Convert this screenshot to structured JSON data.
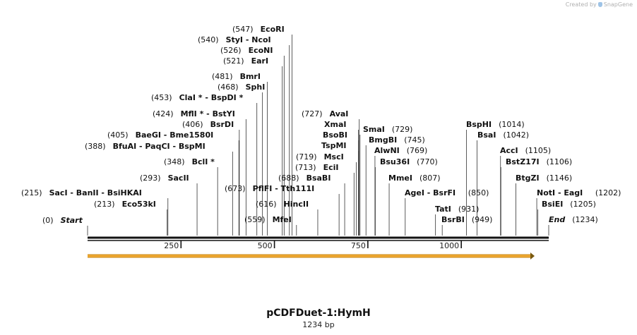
{
  "credit": {
    "text": "Created by",
    "brand": "SnapGene",
    "icon": "snapgene-logo-icon"
  },
  "map": {
    "name": "pCDFDuet-1:HymH",
    "length_label": "1234 bp",
    "length": 1234,
    "ruler_ticks": [
      {
        "pos": 250,
        "label": "250"
      },
      {
        "pos": 500,
        "label": "500"
      },
      {
        "pos": 750,
        "label": "750"
      },
      {
        "pos": 1000,
        "label": "1000"
      }
    ],
    "feature": {
      "start": 0,
      "end": 1234,
      "strand": "forward",
      "color": "#f0a830"
    },
    "colors": {
      "line": "#111111",
      "sites": "#333333"
    },
    "sites": [
      {
        "pos": 0,
        "num": "(0)",
        "names": [
          "Start"
        ],
        "italic": true
      },
      {
        "pos": 213,
        "num": "(213)",
        "names": [
          "Eco53kI"
        ]
      },
      {
        "pos": 215,
        "num": "(215)",
        "names": [
          "SacI",
          "BanII",
          "BsiHKAI"
        ]
      },
      {
        "pos": 293,
        "num": "(293)",
        "names": [
          "SacII"
        ]
      },
      {
        "pos": 348,
        "num": "(348)",
        "names": [
          "BclI *"
        ]
      },
      {
        "pos": 388,
        "num": "(388)",
        "names": [
          "BfuAI",
          "PaqCI",
          "BspMI"
        ]
      },
      {
        "pos": 405,
        "num": "(405)",
        "names": [
          "BaeGI",
          "Bme1580I"
        ]
      },
      {
        "pos": 406,
        "num": "(406)",
        "names": [
          "BsrDI"
        ]
      },
      {
        "pos": 424,
        "num": "(424)",
        "names": [
          "MflI *",
          "BstYI"
        ]
      },
      {
        "pos": 453,
        "num": "(453)",
        "names": [
          "ClaI *",
          "BspDI *"
        ]
      },
      {
        "pos": 468,
        "num": "(468)",
        "names": [
          "SphI"
        ]
      },
      {
        "pos": 481,
        "num": "(481)",
        "names": [
          "BmrI"
        ]
      },
      {
        "pos": 521,
        "num": "(521)",
        "names": [
          "EarI"
        ]
      },
      {
        "pos": 526,
        "num": "(526)",
        "names": [
          "EcoNI"
        ]
      },
      {
        "pos": 540,
        "num": "(540)",
        "names": [
          "StyI",
          "NcoI"
        ]
      },
      {
        "pos": 547,
        "num": "(547)",
        "names": [
          "EcoRI"
        ]
      },
      {
        "pos": 559,
        "num": "(559)",
        "names": [
          "MfeI"
        ]
      },
      {
        "pos": 616,
        "num": "(616)",
        "names": [
          "HincII"
        ]
      },
      {
        "pos": 673,
        "num": "(673)",
        "names": [
          "PflFI",
          "Tth111I"
        ]
      },
      {
        "pos": 688,
        "num": "(688)",
        "names": [
          "BsaBI"
        ]
      },
      {
        "pos": 713,
        "num": "(713)",
        "names": [
          "EciI"
        ]
      },
      {
        "pos": 719,
        "num": "(719)",
        "names": [
          "MscI"
        ]
      },
      {
        "pos": 725,
        "num": "",
        "names": [
          "TspMI"
        ]
      },
      {
        "pos": 725,
        "num": "",
        "names": [
          "BsoBI"
        ]
      },
      {
        "pos": 725,
        "num": "",
        "names": [
          "XmaI"
        ]
      },
      {
        "pos": 727,
        "num": "(727)",
        "names": [
          "AvaI"
        ]
      },
      {
        "pos": 729,
        "num": "(729)",
        "names": [
          "SmaI"
        ]
      },
      {
        "pos": 745,
        "num": "(745)",
        "names": [
          "BmgBI"
        ]
      },
      {
        "pos": 769,
        "num": "(769)",
        "names": [
          "AlwNI"
        ]
      },
      {
        "pos": 770,
        "num": "(770)",
        "names": [
          "Bsu36I"
        ]
      },
      {
        "pos": 807,
        "num": "(807)",
        "names": [
          "MmeI"
        ]
      },
      {
        "pos": 850,
        "num": "(850)",
        "names": [
          "AgeI",
          "BsrFI"
        ]
      },
      {
        "pos": 931,
        "num": "(931)",
        "names": [
          "TatI"
        ]
      },
      {
        "pos": 949,
        "num": "(949)",
        "names": [
          "BsrBI"
        ]
      },
      {
        "pos": 1014,
        "num": "(1014)",
        "names": [
          "BspHI"
        ]
      },
      {
        "pos": 1042,
        "num": "(1042)",
        "names": [
          "BsaI"
        ]
      },
      {
        "pos": 1105,
        "num": "(1105)",
        "names": [
          "AccI"
        ]
      },
      {
        "pos": 1106,
        "num": "(1106)",
        "names": [
          "BstZ17I"
        ]
      },
      {
        "pos": 1146,
        "num": "(1146)",
        "names": [
          "BtgZI"
        ]
      },
      {
        "pos": 1202,
        "num": "(1202)",
        "names": [
          "NotI",
          "EagI"
        ]
      },
      {
        "pos": 1205,
        "num": "(1205)",
        "names": [
          "BsiEI"
        ]
      },
      {
        "pos": 1234,
        "num": "(1234)",
        "names": [
          "End"
        ],
        "italic": true
      }
    ]
  }
}
